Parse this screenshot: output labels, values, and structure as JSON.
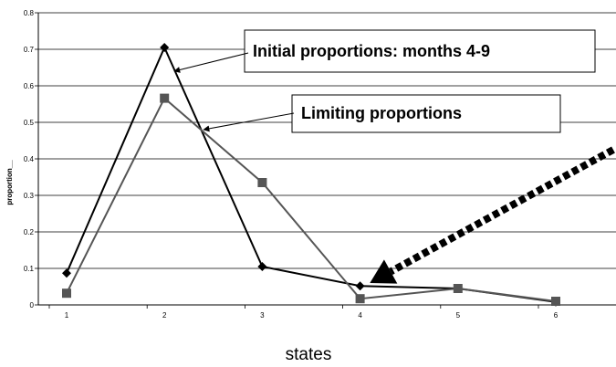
{
  "chart_data": {
    "type": "line",
    "x": [
      1,
      2,
      3,
      4,
      5,
      6
    ],
    "series": [
      {
        "name": "Initial proportions: months 4-9",
        "color": "#000000",
        "marker": "diamond",
        "values": [
          0.087,
          0.705,
          0.105,
          0.052,
          0.045,
          0.008
        ]
      },
      {
        "name": "Limiting proportions",
        "color": "#555555",
        "marker": "square",
        "values": [
          0.032,
          0.566,
          0.335,
          0.017,
          0.045,
          0.01
        ]
      }
    ],
    "xlabel": "states",
    "ylabel": "proportion__",
    "ylim": [
      0,
      0.8
    ],
    "yticks": [
      "0",
      "0.1",
      "0.2",
      "0.3",
      "0.4",
      "0.5",
      "0.6",
      "0.7",
      "0.8"
    ],
    "xticks": [
      "1",
      "2",
      "3",
      "4",
      "5",
      "6"
    ],
    "grid": true,
    "annotations": [
      {
        "text": "Initial proportions: months 4-9",
        "target": {
          "x": 2.1,
          "y": 0.64
        }
      },
      {
        "text": "Limiting proportions",
        "target": {
          "x": 2.4,
          "y": 0.48
        }
      },
      {
        "text": "",
        "style": "dashed-thick-arrow",
        "target": {
          "x": 4.1,
          "y": 0.06
        }
      }
    ]
  }
}
